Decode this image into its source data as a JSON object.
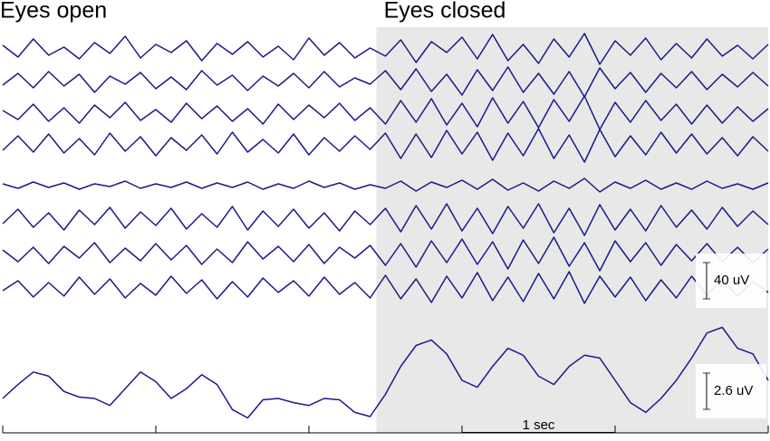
{
  "chart_data": [
    {
      "type": "line",
      "annotations": [
        {
          "text": "Eyes open",
          "x": 0
        },
        {
          "text": "Eyes closed",
          "x": 2.4
        }
      ],
      "shaded_region": [
        2.4,
        5
      ],
      "shade_color": "#e8e8e8",
      "scale_bar": {
        "value": 40,
        "label": "40 uV"
      },
      "xlim": [
        0,
        5
      ],
      "x": [
        0,
        0.1,
        0.2,
        0.3,
        0.4,
        0.5,
        0.6,
        0.7,
        0.8,
        0.9,
        1,
        1.1,
        1.2,
        1.3,
        1.4,
        1.5,
        1.6,
        1.7,
        1.8,
        1.9,
        2,
        2.1,
        2.2,
        2.3,
        2.4,
        2.5,
        2.6,
        2.7,
        2.8,
        2.9,
        3,
        3.1,
        3.2,
        3.3,
        3.4,
        3.5,
        3.6,
        3.7,
        3.8,
        3.9,
        4,
        4.1,
        4.2,
        4.3,
        4.4,
        4.5,
        4.6,
        4.7,
        4.8,
        4.9,
        5
      ],
      "series": [
        {
          "color": "#1a1a8c",
          "values": [
            5,
            -8,
            12,
            -6,
            3,
            -10,
            8,
            -4,
            15,
            -9,
            6,
            -3,
            10,
            -12,
            7,
            -5,
            9,
            -8,
            4,
            -11,
            13,
            -6,
            8,
            -9,
            2,
            -7,
            11,
            -14,
            9,
            -3,
            14,
            -10,
            17,
            -12,
            6,
            -15,
            12,
            -8,
            18,
            -16,
            10,
            -6,
            13,
            -11,
            7,
            -9,
            12,
            -7,
            5,
            -10,
            6
          ]
        },
        {
          "color": "#1a1a8c",
          "values": [
            -4,
            9,
            -7,
            11,
            -5,
            8,
            -12,
            6,
            -3,
            10,
            -8,
            5,
            -9,
            12,
            -4,
            7,
            -10,
            6,
            -5,
            9,
            -7,
            11,
            -6,
            4,
            -3,
            12,
            -9,
            14,
            -11,
            8,
            -15,
            13,
            -10,
            16,
            -12,
            9,
            -14,
            11,
            -17,
            15,
            -8,
            10,
            -12,
            9,
            -7,
            11,
            -9,
            8,
            -6,
            10,
            -5
          ]
        },
        {
          "color": "#1a1a8c",
          "values": [
            3,
            -7,
            10,
            -9,
            6,
            -11,
            9,
            -5,
            12,
            -8,
            4,
            -10,
            11,
            -6,
            8,
            -9,
            5,
            -12,
            10,
            -7,
            9,
            -5,
            11,
            -8,
            6,
            -12,
            14,
            -10,
            16,
            -13,
            11,
            -15,
            17,
            -11,
            13,
            -16,
            15,
            -9,
            19,
            -18,
            12,
            -10,
            14,
            -8,
            10,
            -12,
            9,
            -11,
            7,
            -9,
            5
          ]
        },
        {
          "color": "#1a1a8c",
          "values": [
            -6,
            10,
            -8,
            12,
            -9,
            7,
            -11,
            13,
            -7,
            9,
            -12,
            8,
            -6,
            11,
            -10,
            14,
            -8,
            6,
            -9,
            12,
            -11,
            8,
            -7,
            10,
            -5,
            13,
            -15,
            12,
            -14,
            16,
            -10,
            14,
            -17,
            13,
            -12,
            18,
            -15,
            11,
            -19,
            17,
            -13,
            10,
            -11,
            14,
            -9,
            12,
            -10,
            8,
            -12,
            9,
            -7
          ]
        },
        {
          "color": "#1a1a8c",
          "values": [
            2,
            -3,
            4,
            -2,
            3,
            -4,
            2,
            -1,
            5,
            -3,
            2,
            -2,
            4,
            -3,
            3,
            -2,
            4,
            -4,
            2,
            -3,
            5,
            -2,
            3,
            -4,
            1,
            -3,
            5,
            -6,
            4,
            -2,
            6,
            -4,
            7,
            -5,
            3,
            -6,
            5,
            -3,
            8,
            -7,
            4,
            -3,
            6,
            -4,
            3,
            -4,
            5,
            -3,
            2,
            -4,
            3
          ]
        },
        {
          "color": "#1a1a8c",
          "values": [
            -5,
            11,
            -9,
            7,
            -12,
            10,
            -6,
            13,
            -10,
            8,
            -7,
            12,
            -11,
            6,
            -9,
            14,
            -12,
            9,
            -8,
            11,
            -10,
            7,
            -13,
            9,
            -6,
            12,
            -14,
            15,
            -11,
            17,
            -13,
            12,
            -16,
            14,
            -10,
            17,
            -15,
            12,
            -18,
            16,
            -12,
            11,
            -13,
            15,
            -9,
            10,
            -11,
            13,
            -8,
            9,
            -6
          ]
        },
        {
          "color": "#1a1a8c",
          "values": [
            4,
            -9,
            7,
            -11,
            8,
            -5,
            12,
            -10,
            6,
            -8,
            11,
            -7,
            9,
            -12,
            5,
            -10,
            13,
            -6,
            8,
            -9,
            10,
            -11,
            7,
            -5,
            9,
            -13,
            11,
            -15,
            14,
            -10,
            16,
            -12,
            13,
            -17,
            15,
            -11,
            18,
            -14,
            12,
            -19,
            14,
            -9,
            12,
            -13,
            10,
            -8,
            11,
            -9,
            7,
            -10,
            5
          ]
        },
        {
          "color": "#1a1a8c",
          "values": [
            -3,
            8,
            -10,
            6,
            -9,
            12,
            -7,
            10,
            -11,
            5,
            -8,
            13,
            -6,
            9,
            -12,
            7,
            -10,
            11,
            -5,
            8,
            -9,
            12,
            -7,
            6,
            -11,
            14,
            -12,
            10,
            -16,
            13,
            -11,
            17,
            -14,
            12,
            -15,
            16,
            -12,
            18,
            -17,
            13,
            -10,
            12,
            -14,
            9,
            -11,
            13,
            -8,
            10,
            -9,
            7,
            -5
          ]
        }
      ]
    },
    {
      "type": "line",
      "scale_bar": {
        "value": 2.6,
        "label": "2.6 uV"
      },
      "time_bar": {
        "value": 1,
        "label": "1 sec"
      },
      "xlim": [
        0,
        5
      ],
      "xticks": [
        0,
        1,
        2,
        3,
        4,
        5
      ],
      "x": [
        0,
        0.1,
        0.2,
        0.3,
        0.4,
        0.5,
        0.6,
        0.7,
        0.8,
        0.9,
        1,
        1.1,
        1.2,
        1.3,
        1.4,
        1.5,
        1.6,
        1.7,
        1.8,
        1.9,
        2,
        2.1,
        2.2,
        2.3,
        2.4,
        2.5,
        2.6,
        2.7,
        2.8,
        2.9,
        3,
        3.1,
        3.2,
        3.3,
        3.4,
        3.5,
        3.6,
        3.7,
        3.8,
        3.9,
        4,
        4.1,
        4.2,
        4.3,
        4.4,
        4.5,
        4.6,
        4.7,
        4.8,
        4.9,
        5
      ],
      "series": [
        {
          "color": "#1a1a8c",
          "values": [
            -1.3,
            -0.3,
            0.6,
            0.3,
            -0.8,
            -1.2,
            -1.3,
            -1.8,
            -0.6,
            0.6,
            -0.1,
            -1.3,
            -0.6,
            0.4,
            -0.3,
            -2.1,
            -2.7,
            -1.4,
            -1.3,
            -1.6,
            -1.8,
            -1.3,
            -1.4,
            -2.3,
            -2.6,
            -1,
            1,
            2.5,
            2.9,
            1.9,
            0,
            -0.5,
            1,
            2.3,
            1.8,
            0.3,
            -0.3,
            1,
            1.8,
            1.6,
            0,
            -1.6,
            -2.3,
            -1.3,
            0,
            1.6,
            3.4,
            3.8,
            2.3,
            1.9,
            0
          ]
        }
      ]
    }
  ]
}
